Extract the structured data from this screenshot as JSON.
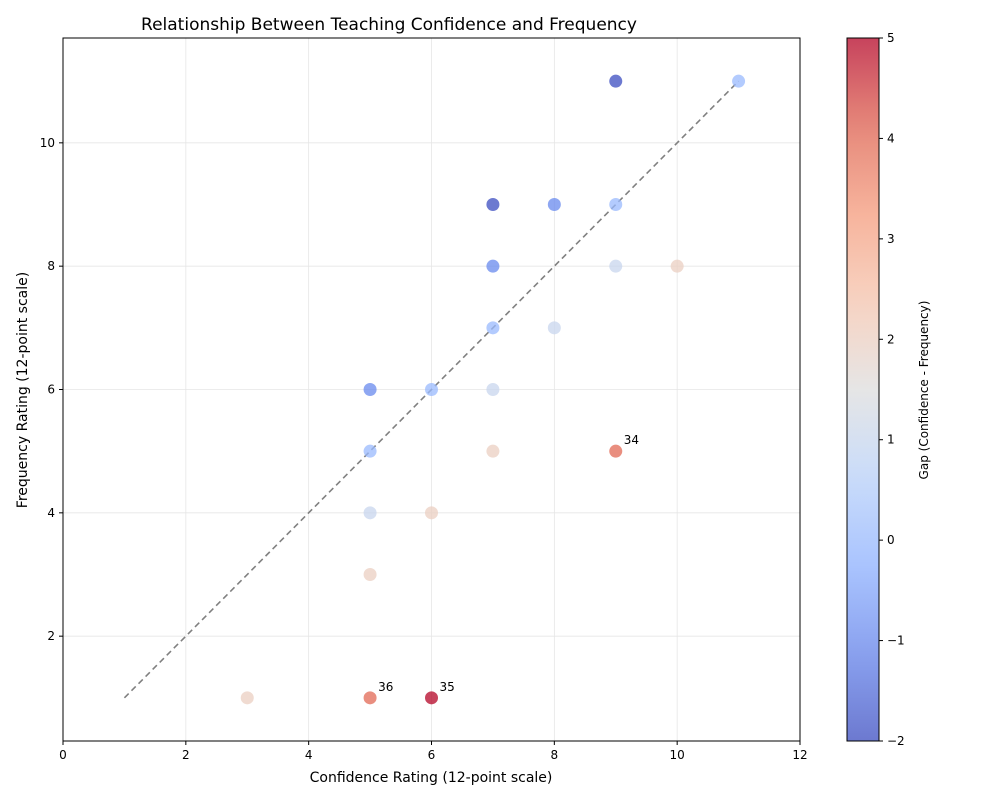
{
  "chart_data": {
    "type": "scatter",
    "title": "Relationship Between Teaching Confidence and Frequency",
    "xlabel": "Confidence Rating (12-point scale)",
    "ylabel": "Frequency Rating (12-point scale)",
    "xlim": [
      0,
      12
    ],
    "ylim": [
      0.3,
      11.7
    ],
    "xticks": [
      "0",
      "2",
      "4",
      "6",
      "8",
      "10",
      "12"
    ],
    "yticks": [
      "2",
      "4",
      "6",
      "8",
      "10"
    ],
    "grid": true,
    "colormap": "coolwarm",
    "colorbar": {
      "label": "Gap (Confidence - Frequency)",
      "range": [
        -2,
        5
      ],
      "ticks": [
        "−2",
        "−1",
        "0",
        "1",
        "2",
        "3",
        "4",
        "5"
      ]
    },
    "reference_line": {
      "x": [
        1,
        11
      ],
      "y": [
        1,
        11
      ],
      "style": "dashed",
      "color": "#808080"
    },
    "points": [
      {
        "x": 9,
        "y": 11
      },
      {
        "x": 11,
        "y": 11
      },
      {
        "x": 7,
        "y": 9
      },
      {
        "x": 8,
        "y": 9
      },
      {
        "x": 9,
        "y": 9
      },
      {
        "x": 7,
        "y": 8
      },
      {
        "x": 9,
        "y": 8
      },
      {
        "x": 10,
        "y": 8
      },
      {
        "x": 7,
        "y": 7
      },
      {
        "x": 8,
        "y": 7
      },
      {
        "x": 5,
        "y": 6
      },
      {
        "x": 6,
        "y": 6
      },
      {
        "x": 7,
        "y": 6
      },
      {
        "x": 5,
        "y": 5
      },
      {
        "x": 7,
        "y": 5
      },
      {
        "x": 9,
        "y": 5,
        "label": "34"
      },
      {
        "x": 5,
        "y": 4
      },
      {
        "x": 6,
        "y": 4
      },
      {
        "x": 5,
        "y": 3
      },
      {
        "x": 3,
        "y": 1
      },
      {
        "x": 5,
        "y": 1,
        "label": "36"
      },
      {
        "x": 6,
        "y": 1,
        "label": "35"
      }
    ],
    "annotations": [
      "34",
      "35",
      "36"
    ]
  }
}
